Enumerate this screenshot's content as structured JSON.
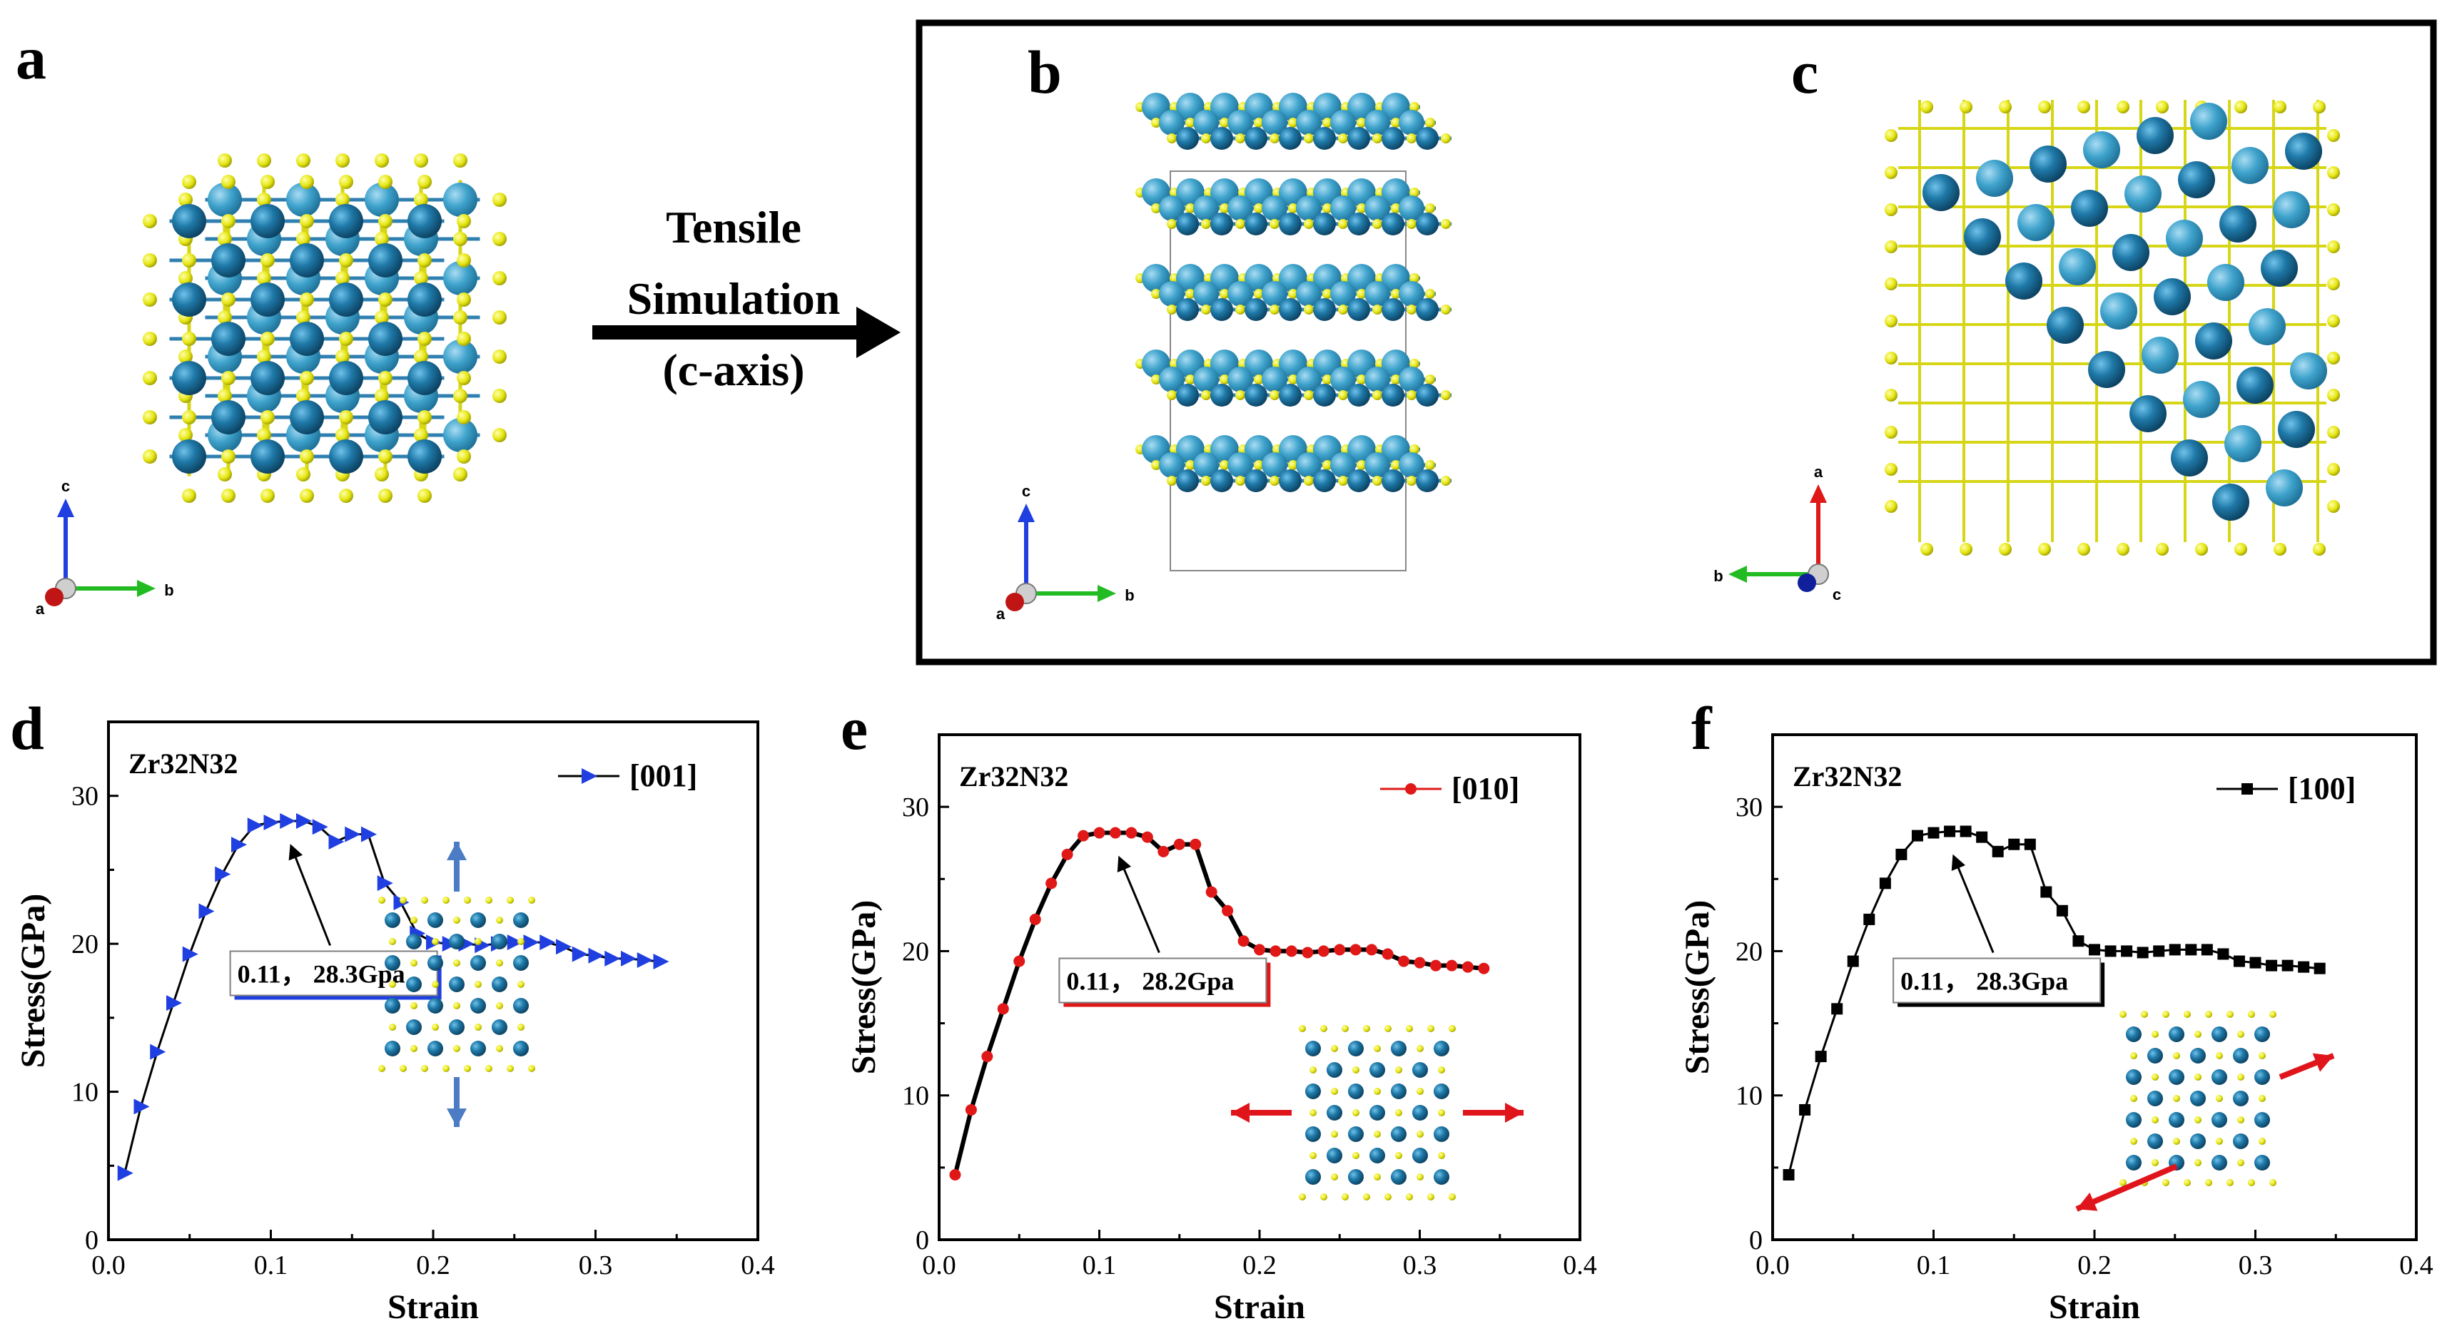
{
  "panels": {
    "a": "a",
    "b": "b",
    "c": "c",
    "d": "d",
    "e": "e",
    "f": "f"
  },
  "arrow_text": [
    "Tensile",
    "Simulation",
    "(c-axis)"
  ],
  "axes_triads": {
    "a": {
      "up": "c",
      "right": "b",
      "out": "a"
    },
    "b": {
      "up": "c",
      "right": "b",
      "out": "a"
    },
    "c": {
      "up": "a",
      "left": "b",
      "out": "c"
    }
  },
  "colors": {
    "zr_dark": "#1a6e9b",
    "zr_light": "#3fa3cc",
    "n_yellow": "#ecec1c",
    "blue_series": "#1f3fe0",
    "red_series": "#e01818",
    "black_series": "#000000",
    "arrow_red": "#e0151b",
    "arrow_blue": "#4b7cc4"
  },
  "chart_data": [
    {
      "type": "line",
      "panel": "d",
      "title": "Zr32N32",
      "legend": "[001]",
      "legend_position": "top-right",
      "marker": "triangle-right",
      "color": "#1f3fe0",
      "xlabel": "Strain",
      "ylabel": "Stress(GPa)",
      "xlim": [
        0.0,
        0.4
      ],
      "ylim": [
        0,
        35
      ],
      "xticks": [
        "0.0",
        "0.1",
        "0.2",
        "0.3",
        "0.4"
      ],
      "yticks": [
        "0",
        "10",
        "20",
        "30"
      ],
      "annotation": "0.11，  28.3Gpa",
      "peak": {
        "x": 0.11,
        "y": 28.3
      },
      "x": [
        0.01,
        0.02,
        0.03,
        0.04,
        0.05,
        0.06,
        0.07,
        0.08,
        0.09,
        0.1,
        0.11,
        0.12,
        0.13,
        0.14,
        0.15,
        0.16,
        0.17,
        0.18,
        0.19,
        0.2,
        0.21,
        0.22,
        0.23,
        0.24,
        0.25,
        0.26,
        0.27,
        0.28,
        0.29,
        0.3,
        0.31,
        0.32,
        0.33,
        0.34
      ],
      "y": [
        4.5,
        9.0,
        12.7,
        16.0,
        19.3,
        22.2,
        24.7,
        26.7,
        28.0,
        28.2,
        28.3,
        28.3,
        27.9,
        26.9,
        27.4,
        27.4,
        24.1,
        22.8,
        20.7,
        20.1,
        20.0,
        20.0,
        19.9,
        20.0,
        20.1,
        20.1,
        20.1,
        19.8,
        19.3,
        19.2,
        19.0,
        19.0,
        18.9,
        18.8
      ]
    },
    {
      "type": "line",
      "panel": "e",
      "title": "Zr32N32",
      "legend": "[010]",
      "legend_position": "top-right",
      "marker": "circle",
      "color": "#e01818",
      "xlabel": "Strain",
      "ylabel": "Stress(GPa)",
      "xlim": [
        0.0,
        0.4
      ],
      "ylim": [
        0,
        35
      ],
      "xticks": [
        "0.0",
        "0.1",
        "0.2",
        "0.3",
        "0.4"
      ],
      "yticks": [
        "0",
        "10",
        "20",
        "30"
      ],
      "annotation": "0.11，  28.2Gpa",
      "peak": {
        "x": 0.11,
        "y": 28.2
      },
      "x": [
        0.01,
        0.02,
        0.03,
        0.04,
        0.05,
        0.06,
        0.07,
        0.08,
        0.09,
        0.1,
        0.11,
        0.12,
        0.13,
        0.14,
        0.15,
        0.16,
        0.17,
        0.18,
        0.19,
        0.2,
        0.21,
        0.22,
        0.23,
        0.24,
        0.25,
        0.26,
        0.27,
        0.28,
        0.29,
        0.3,
        0.31,
        0.32,
        0.33,
        0.34
      ],
      "y": [
        4.5,
        9.0,
        12.7,
        16.0,
        19.3,
        22.2,
        24.7,
        26.7,
        28.0,
        28.2,
        28.2,
        28.2,
        27.9,
        26.9,
        27.4,
        27.4,
        24.1,
        22.8,
        20.7,
        20.1,
        20.0,
        20.0,
        19.9,
        20.0,
        20.1,
        20.1,
        20.1,
        19.8,
        19.3,
        19.2,
        19.0,
        19.0,
        18.9,
        18.8
      ]
    },
    {
      "type": "line",
      "panel": "f",
      "title": "Zr32N32",
      "legend": "[100]",
      "legend_position": "top-right",
      "marker": "square",
      "color": "#000000",
      "xlabel": "Strain",
      "ylabel": "Stress(GPa)",
      "xlim": [
        0.0,
        0.4
      ],
      "ylim": [
        0,
        35
      ],
      "xticks": [
        "0.0",
        "0.1",
        "0.2",
        "0.3",
        "0.4"
      ],
      "yticks": [
        "0",
        "10",
        "20",
        "30"
      ],
      "annotation": "0.11，  28.3Gpa",
      "peak": {
        "x": 0.11,
        "y": 28.3
      },
      "x": [
        0.01,
        0.02,
        0.03,
        0.04,
        0.05,
        0.06,
        0.07,
        0.08,
        0.09,
        0.1,
        0.11,
        0.12,
        0.13,
        0.14,
        0.15,
        0.16,
        0.17,
        0.18,
        0.19,
        0.2,
        0.21,
        0.22,
        0.23,
        0.24,
        0.25,
        0.26,
        0.27,
        0.28,
        0.29,
        0.3,
        0.31,
        0.32,
        0.33,
        0.34
      ],
      "y": [
        4.5,
        9.0,
        12.7,
        16.0,
        19.3,
        22.2,
        24.7,
        26.7,
        28.0,
        28.2,
        28.3,
        28.3,
        27.9,
        26.9,
        27.4,
        27.4,
        24.1,
        22.8,
        20.7,
        20.1,
        20.0,
        20.0,
        19.9,
        20.0,
        20.1,
        20.1,
        20.1,
        19.8,
        19.3,
        19.2,
        19.0,
        19.0,
        18.9,
        18.8
      ]
    }
  ]
}
